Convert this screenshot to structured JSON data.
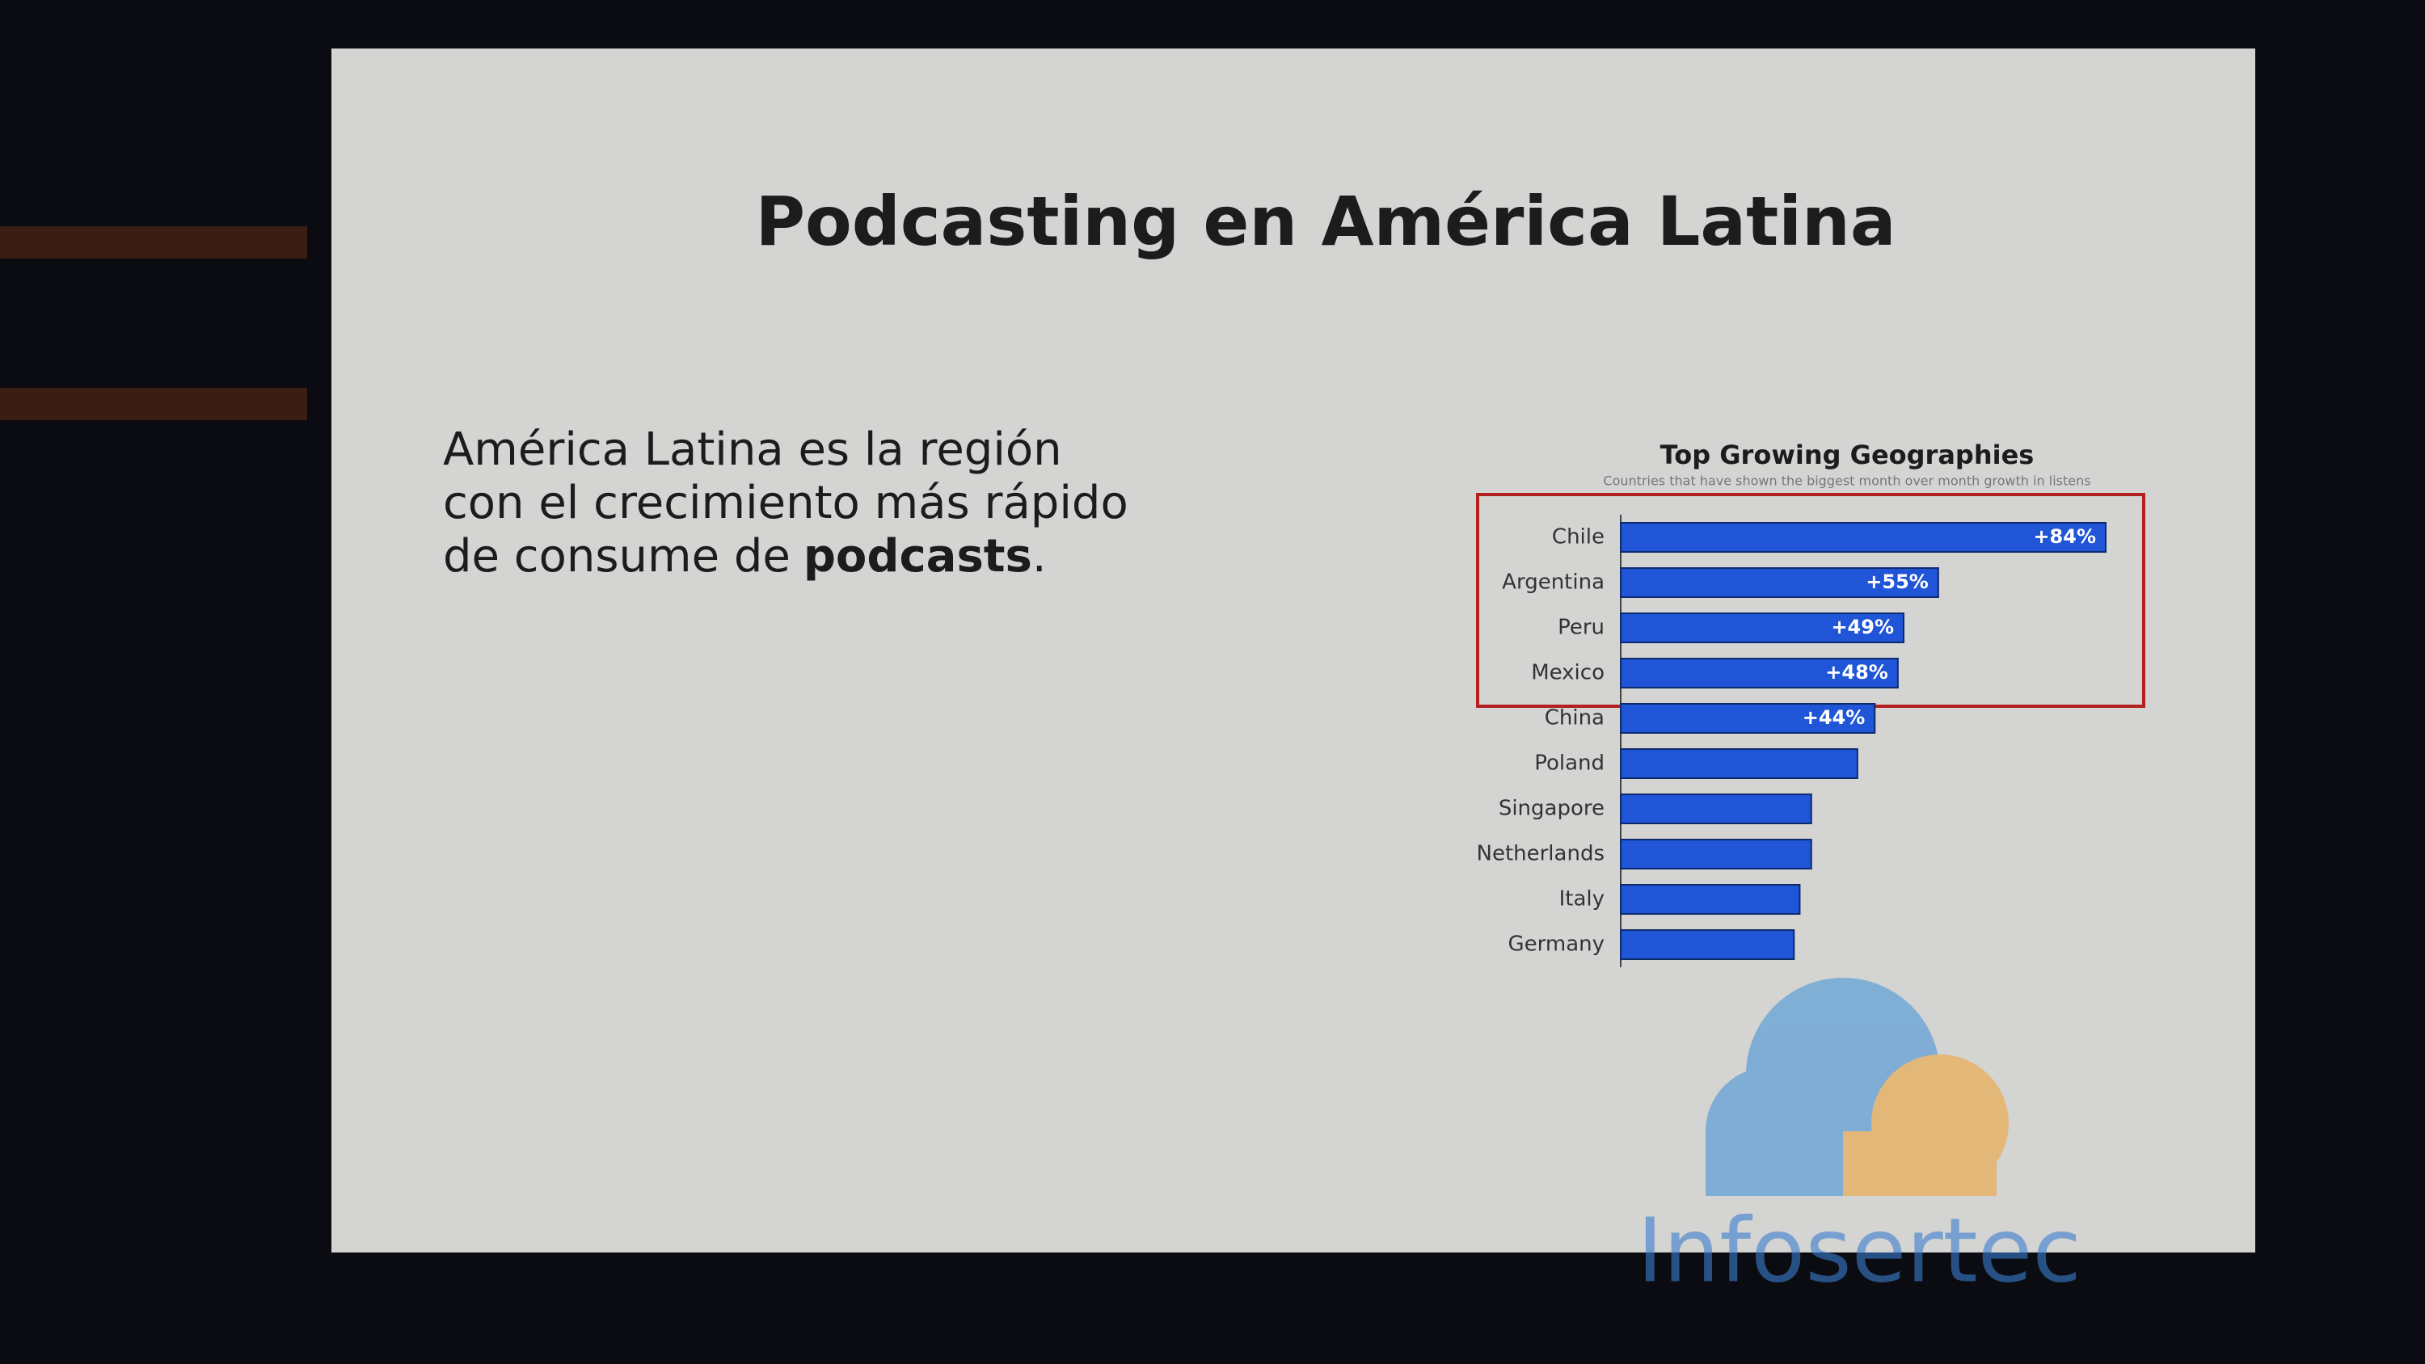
{
  "title": "Podcasting en América Latina",
  "body_lines": [
    "América Latina es la región",
    "con el crecimiento más rápido",
    "de consume de"
  ],
  "body_bold": "podcasts",
  "body_end": ".",
  "watermark": "Infosertec",
  "chart_data": {
    "type": "hbar",
    "title": "Top Growing Geographies",
    "subtitle": "Countries that have shown the biggest month over month growth in listens",
    "categories": [
      "Chile",
      "Argentina",
      "Peru",
      "Mexico",
      "China",
      "Poland",
      "Singapore",
      "Netherlands",
      "Italy",
      "Germany"
    ],
    "values": [
      84,
      55,
      49,
      48,
      44,
      41,
      33,
      33,
      31,
      30
    ],
    "value_labels": [
      "+84%",
      "+55%",
      "+49%",
      "+48%",
      "+44%",
      null,
      null,
      null,
      null,
      null
    ],
    "color": "#1f55d6"
  }
}
